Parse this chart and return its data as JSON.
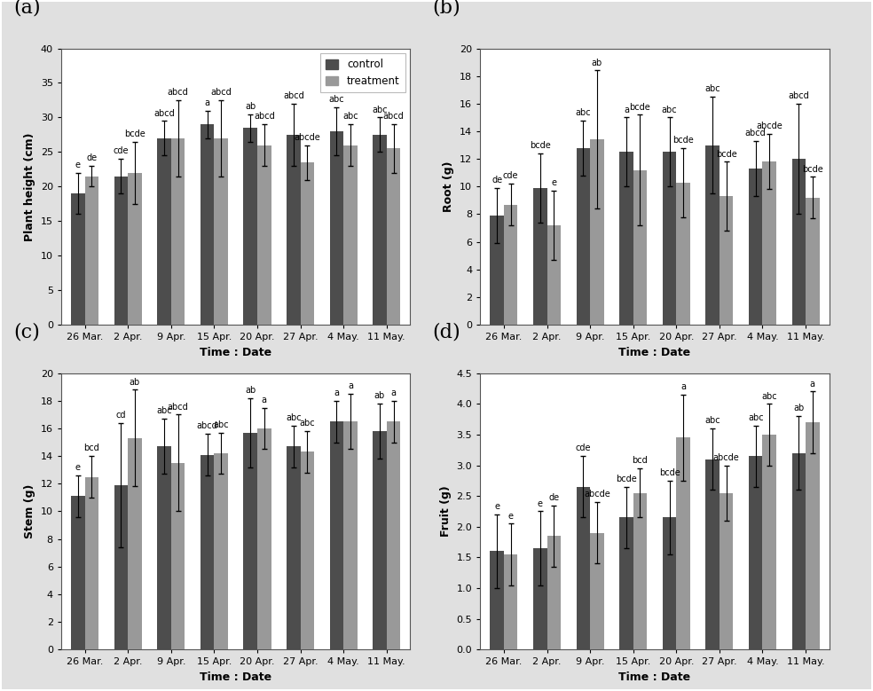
{
  "dates": [
    "26 Mar.",
    "2 Apr.",
    "9 Apr.",
    "15 Apr.",
    "20 Apr.",
    "27 Apr.",
    "4 May.",
    "11 May."
  ],
  "panel_a": {
    "title": "(a)",
    "ylabel": "Plant height (cm)",
    "xlabel": "Time : Date",
    "ylim": [
      0,
      40
    ],
    "yticks": [
      0,
      5,
      10,
      15,
      20,
      25,
      30,
      35,
      40
    ],
    "control_values": [
      19.0,
      21.5,
      27.0,
      29.0,
      28.5,
      27.5,
      28.0,
      27.5
    ],
    "treatment_values": [
      21.5,
      22.0,
      27.0,
      27.0,
      26.0,
      23.5,
      26.0,
      25.5
    ],
    "control_errors": [
      3.0,
      2.5,
      2.5,
      2.0,
      2.0,
      4.5,
      3.5,
      2.5
    ],
    "treatment_errors": [
      1.5,
      4.5,
      5.5,
      5.5,
      3.0,
      2.5,
      3.0,
      3.5
    ],
    "control_labels": [
      "e",
      "cde",
      "abcd",
      "a",
      "ab",
      "abcd",
      "abc",
      "abc"
    ],
    "treatment_labels": [
      "de",
      "bcde",
      "abcd",
      "abcd",
      "abcd",
      "abcde",
      "abc",
      "abcd"
    ],
    "legend": true
  },
  "panel_b": {
    "title": "(b)",
    "ylabel": "Root (g)",
    "xlabel": "Time : Date",
    "ylim": [
      0,
      20
    ],
    "yticks": [
      0,
      2,
      4,
      6,
      8,
      10,
      12,
      14,
      16,
      18,
      20
    ],
    "control_values": [
      7.9,
      9.9,
      12.8,
      12.5,
      12.5,
      13.0,
      11.3,
      12.0
    ],
    "treatment_values": [
      8.7,
      7.2,
      13.4,
      11.2,
      10.3,
      9.3,
      11.8,
      9.2
    ],
    "control_errors": [
      2.0,
      2.5,
      2.0,
      2.5,
      2.5,
      3.5,
      2.0,
      4.0
    ],
    "treatment_errors": [
      1.5,
      2.5,
      5.0,
      4.0,
      2.5,
      2.5,
      2.0,
      1.5
    ],
    "control_labels": [
      "de",
      "bcde",
      "abc",
      "a",
      "abc",
      "abc",
      "abcd",
      "abcd"
    ],
    "treatment_labels": [
      "cde",
      "e",
      "ab",
      "bcde",
      "bcde",
      "bcde",
      "abcde",
      "bcde"
    ],
    "legend": false
  },
  "panel_c": {
    "title": "(c)",
    "ylabel": "Stem (g)",
    "xlabel": "Time : Date",
    "ylim": [
      0,
      20
    ],
    "yticks": [
      0,
      2,
      4,
      6,
      8,
      10,
      12,
      14,
      16,
      18,
      20
    ],
    "control_values": [
      11.1,
      11.9,
      14.7,
      14.1,
      15.7,
      14.7,
      16.5,
      15.8
    ],
    "treatment_values": [
      12.5,
      15.3,
      13.5,
      14.2,
      16.0,
      14.3,
      16.5,
      16.5
    ],
    "control_errors": [
      1.5,
      4.5,
      2.0,
      1.5,
      2.5,
      1.5,
      1.5,
      2.0
    ],
    "treatment_errors": [
      1.5,
      3.5,
      3.5,
      1.5,
      1.5,
      1.5,
      2.0,
      1.5
    ],
    "control_labels": [
      "e",
      "cd",
      "abc",
      "abcd",
      "ab",
      "abc",
      "a",
      "ab"
    ],
    "treatment_labels": [
      "bcd",
      "ab",
      "abcd",
      "abc",
      "a",
      "abc",
      "a",
      "a"
    ],
    "legend": false
  },
  "panel_d": {
    "title": "(d)",
    "ylabel": "Fruit (g)",
    "xlabel": "Time : Date",
    "ylim": [
      0,
      4.5
    ],
    "yticks": [
      0,
      0.5,
      1.0,
      1.5,
      2.0,
      2.5,
      3.0,
      3.5,
      4.0,
      4.5
    ],
    "control_values": [
      1.6,
      1.65,
      2.65,
      2.15,
      2.15,
      3.1,
      3.15,
      3.2
    ],
    "treatment_values": [
      1.55,
      1.85,
      1.9,
      2.55,
      3.45,
      2.55,
      3.5,
      3.7
    ],
    "control_errors": [
      0.6,
      0.6,
      0.5,
      0.5,
      0.6,
      0.5,
      0.5,
      0.6
    ],
    "treatment_errors": [
      0.5,
      0.5,
      0.5,
      0.4,
      0.7,
      0.45,
      0.5,
      0.5
    ],
    "control_labels": [
      "e",
      "e",
      "cde",
      "bcde",
      "bcde",
      "abc",
      "abc",
      "ab"
    ],
    "treatment_labels": [
      "e",
      "de",
      "abcde",
      "bcd",
      "a",
      "abcde",
      "abc",
      "a"
    ],
    "legend": false
  },
  "control_color": "#4d4d4d",
  "treatment_color": "#999999",
  "bar_width": 0.32,
  "label_fontsize": 7.0,
  "axis_label_fontsize": 9,
  "tick_fontsize": 8,
  "panel_title_fontsize": 16,
  "legend_fontsize": 8.5,
  "fig_background": "#e0e0e0",
  "plot_background": "#ffffff",
  "outer_border_color": "#888888"
}
